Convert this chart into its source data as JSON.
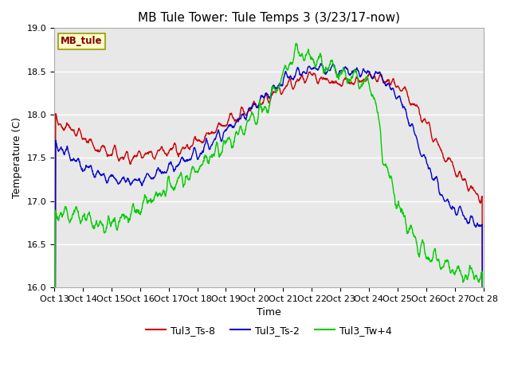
{
  "title": "MB Tule Tower: Tule Temps 3 (3/23/17-now)",
  "ylabel": "Temperature (C)",
  "xlabel": "Time",
  "xlim": [
    0,
    15
  ],
  "ylim": [
    16.0,
    19.0
  ],
  "yticks": [
    16.0,
    16.5,
    17.0,
    17.5,
    18.0,
    18.5,
    19.0
  ],
  "xtick_labels": [
    "Oct 13",
    "Oct 14",
    "Oct 15",
    "Oct 16",
    "Oct 17",
    "Oct 18",
    "Oct 19",
    "Oct 20",
    "Oct 21",
    "Oct 22",
    "Oct 23",
    "Oct 24",
    "Oct 25",
    "Oct 26",
    "Oct 27",
    "Oct 28"
  ],
  "bg_color": "#e8e8e8",
  "grid_color": "#ffffff",
  "line_red": "#cc0000",
  "line_blue": "#0000cc",
  "line_green": "#00cc00",
  "legend_box_label": "MB_tule",
  "legend_box_color": "#ffffcc",
  "legend_box_border": "#999900",
  "series_labels": [
    "Tul3_Ts-8",
    "Tul3_Ts-2",
    "Tul3_Tw+4"
  ],
  "title_fontsize": 11,
  "axis_fontsize": 9,
  "tick_fontsize": 8
}
